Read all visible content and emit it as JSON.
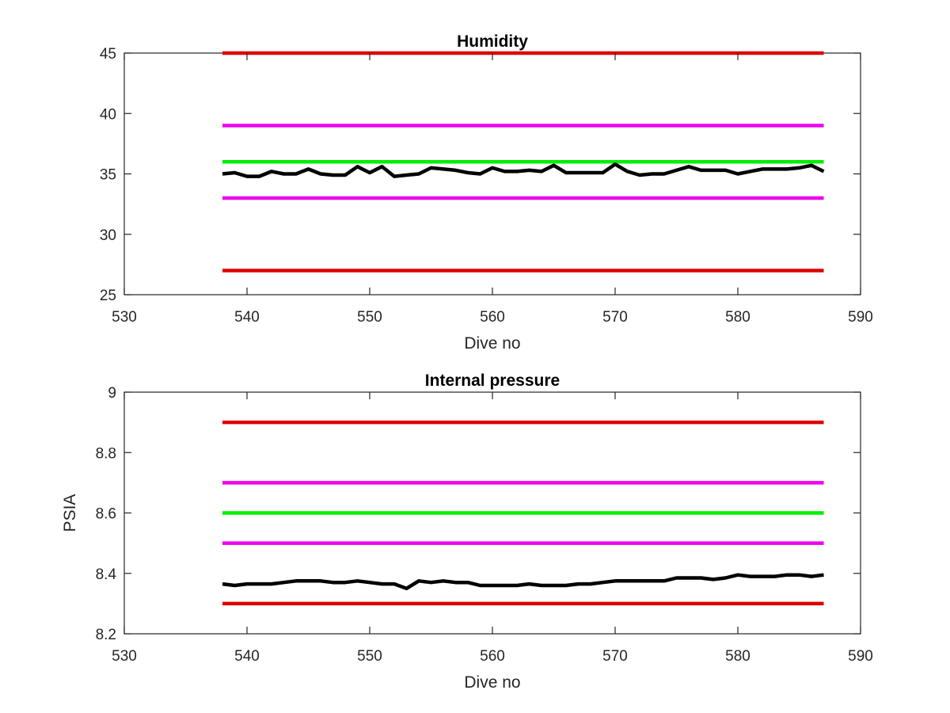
{
  "chart_data": [
    {
      "type": "line",
      "title": "Humidity",
      "xlabel": "Dive no",
      "ylabel": "",
      "xlim": [
        530,
        590
      ],
      "ylim": [
        25,
        45
      ],
      "xticks": [
        530,
        540,
        550,
        560,
        570,
        580,
        590
      ],
      "yticks": [
        25,
        30,
        35,
        40,
        45
      ],
      "x_tick_labels": [
        "530",
        "540",
        "550",
        "560",
        "570",
        "580",
        "590"
      ],
      "y_tick_labels": [
        "25",
        "30",
        "35",
        "40",
        "45"
      ],
      "grid": false,
      "series": [
        {
          "color": "#dd0000",
          "x": [
            538,
            587
          ],
          "y": [
            45,
            45
          ]
        },
        {
          "color": "#ee00ee",
          "x": [
            538,
            587
          ],
          "y": [
            39,
            39
          ]
        },
        {
          "color": "#00ee00",
          "x": [
            538,
            587
          ],
          "y": [
            36,
            36
          ]
        },
        {
          "color": "#ee00ee",
          "x": [
            538,
            587
          ],
          "y": [
            33,
            33
          ]
        },
        {
          "color": "#dd0000",
          "x": [
            538,
            587
          ],
          "y": [
            27,
            27
          ]
        },
        {
          "color": "#000000",
          "x": [
            538,
            539,
            540,
            541,
            542,
            543,
            544,
            545,
            546,
            547,
            548,
            549,
            550,
            551,
            552,
            553,
            554,
            555,
            556,
            557,
            558,
            559,
            560,
            561,
            562,
            563,
            564,
            565,
            566,
            567,
            568,
            569,
            570,
            571,
            572,
            573,
            574,
            575,
            576,
            577,
            578,
            579,
            580,
            581,
            582,
            583,
            584,
            585,
            586,
            587
          ],
          "y": [
            35.0,
            35.1,
            34.8,
            34.8,
            35.2,
            35.0,
            35.0,
            35.4,
            35.0,
            34.9,
            34.9,
            35.6,
            35.1,
            35.6,
            34.8,
            34.9,
            35.0,
            35.5,
            35.4,
            35.3,
            35.1,
            35.0,
            35.5,
            35.2,
            35.2,
            35.3,
            35.2,
            35.7,
            35.1,
            35.1,
            35.1,
            35.1,
            35.8,
            35.2,
            34.9,
            35.0,
            35.0,
            35.3,
            35.6,
            35.3,
            35.3,
            35.3,
            35.0,
            35.2,
            35.4,
            35.4,
            35.4,
            35.5,
            35.7,
            35.2
          ]
        }
      ]
    },
    {
      "type": "line",
      "title": "Internal pressure",
      "xlabel": "Dive no",
      "ylabel": "PSIA",
      "xlim": [
        530,
        590
      ],
      "ylim": [
        8.2,
        9.0
      ],
      "xticks": [
        530,
        540,
        550,
        560,
        570,
        580,
        590
      ],
      "yticks": [
        8.2,
        8.4,
        8.6,
        8.8,
        9.0
      ],
      "x_tick_labels": [
        "530",
        "540",
        "550",
        "560",
        "570",
        "580",
        "590"
      ],
      "y_tick_labels": [
        "8.2",
        "8.4",
        "8.6",
        "8.8",
        "9"
      ],
      "grid": false,
      "series": [
        {
          "color": "#dd0000",
          "x": [
            538,
            587
          ],
          "y": [
            8.9,
            8.9
          ]
        },
        {
          "color": "#ee00ee",
          "x": [
            538,
            587
          ],
          "y": [
            8.7,
            8.7
          ]
        },
        {
          "color": "#00ee00",
          "x": [
            538,
            587
          ],
          "y": [
            8.6,
            8.6
          ]
        },
        {
          "color": "#ee00ee",
          "x": [
            538,
            587
          ],
          "y": [
            8.5,
            8.5
          ]
        },
        {
          "color": "#dd0000",
          "x": [
            538,
            587
          ],
          "y": [
            8.3,
            8.3
          ]
        },
        {
          "color": "#000000",
          "x": [
            538,
            539,
            540,
            541,
            542,
            543,
            544,
            545,
            546,
            547,
            548,
            549,
            550,
            551,
            552,
            553,
            554,
            555,
            556,
            557,
            558,
            559,
            560,
            561,
            562,
            563,
            564,
            565,
            566,
            567,
            568,
            569,
            570,
            571,
            572,
            573,
            574,
            575,
            576,
            577,
            578,
            579,
            580,
            581,
            582,
            583,
            584,
            585,
            586,
            587
          ],
          "y": [
            8.365,
            8.36,
            8.365,
            8.365,
            8.365,
            8.37,
            8.375,
            8.375,
            8.375,
            8.37,
            8.37,
            8.375,
            8.37,
            8.365,
            8.365,
            8.35,
            8.375,
            8.37,
            8.375,
            8.37,
            8.37,
            8.36,
            8.36,
            8.36,
            8.36,
            8.365,
            8.36,
            8.36,
            8.36,
            8.365,
            8.365,
            8.37,
            8.375,
            8.375,
            8.375,
            8.375,
            8.375,
            8.385,
            8.385,
            8.385,
            8.38,
            8.385,
            8.395,
            8.39,
            8.39,
            8.39,
            8.395,
            8.395,
            8.39,
            8.395
          ]
        }
      ]
    }
  ]
}
